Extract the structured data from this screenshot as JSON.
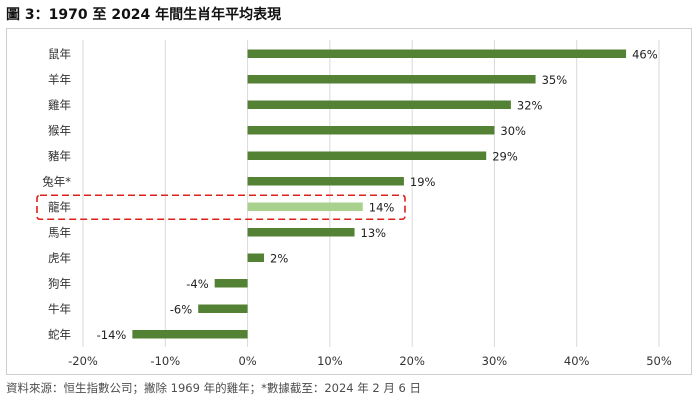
{
  "title": "圖 3：1970 至 2024 年間生肖年平均表現",
  "source": "資料來源：恒生指數公司；撇除 1969 年的雞年；*數據截至：2024 年 2 月 6 日",
  "colors": {
    "bar": "#548235",
    "highlight_bar": "#a9d18e",
    "grid": "#d9d9d9",
    "highlight_box": "#e0201b"
  },
  "chart_data": {
    "type": "bar",
    "orientation": "horizontal",
    "categories": [
      "鼠年",
      "羊年",
      "雞年",
      "猴年",
      "豬年",
      "兔年*",
      "龍年",
      "馬年",
      "虎年",
      "狗年",
      "牛年",
      "蛇年"
    ],
    "values": [
      46,
      35,
      32,
      30,
      29,
      19,
      14,
      13,
      2,
      -4,
      -6,
      -14
    ],
    "value_labels": [
      "46%",
      "35%",
      "32%",
      "30%",
      "29%",
      "19%",
      "14%",
      "13%",
      "2%",
      "-4%",
      "-6%",
      "-14%"
    ],
    "highlight_category": "龍年",
    "xlim": [
      -20,
      50
    ],
    "xticks": [
      -20,
      -10,
      0,
      10,
      20,
      30,
      40,
      50
    ],
    "xtick_labels": [
      "-20%",
      "-10%",
      "0%",
      "10%",
      "20%",
      "30%",
      "40%",
      "50%"
    ],
    "grid": true,
    "legend": "none"
  }
}
